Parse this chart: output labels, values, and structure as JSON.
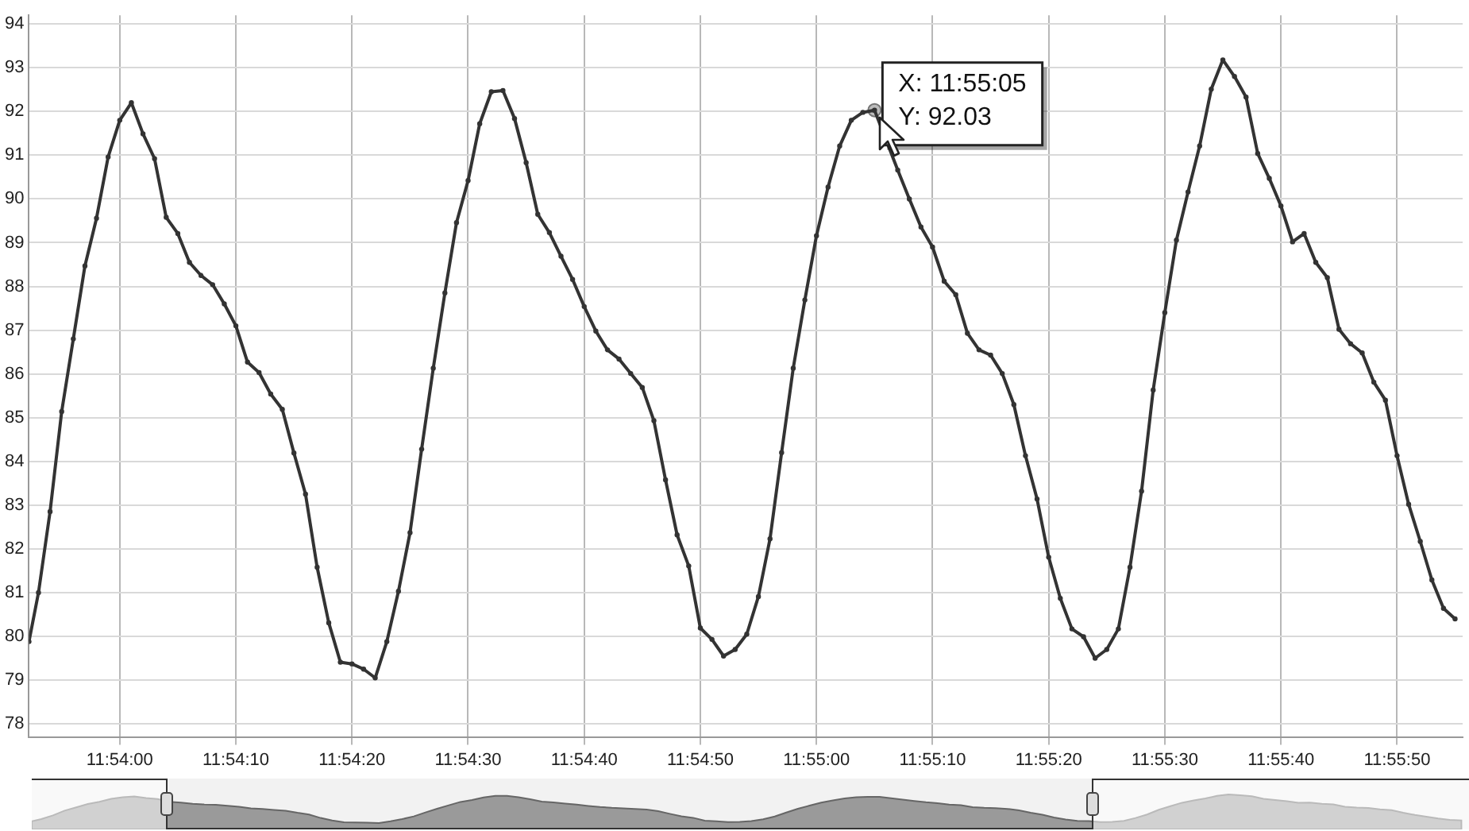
{
  "chart_data": {
    "type": "line",
    "x": [
      11.897828,
      11.898056,
      11.898333,
      11.898611,
      11.898889,
      11.899167,
      11.899444,
      11.899722,
      11.9,
      11.900278,
      11.900556,
      11.900833,
      11.901111,
      11.901389,
      11.901667,
      11.901944,
      11.902222,
      11.9025,
      11.902778,
      11.903056,
      11.903333,
      11.903611,
      11.903889,
      11.904167,
      11.904444,
      11.904722,
      11.905,
      11.905278,
      11.905556,
      11.905833,
      11.906111,
      11.906389,
      11.906667,
      11.906944,
      11.907222,
      11.9075,
      11.907778,
      11.908056,
      11.908333,
      11.908611,
      11.908889,
      11.909167,
      11.909444,
      11.909722,
      11.91,
      11.910278,
      11.910556,
      11.910833,
      11.911111,
      11.911389,
      11.911667,
      11.911944,
      11.912222,
      11.9125,
      11.912778,
      11.913056,
      11.913333,
      11.913611,
      11.913889,
      11.914167,
      11.914444,
      11.914722,
      11.915,
      11.915278,
      11.915556,
      11.915833,
      11.916111,
      11.916389,
      11.916667,
      11.916944,
      11.917222,
      11.9175,
      11.917778,
      11.918056,
      11.918333,
      11.918611,
      11.918889,
      11.919167,
      11.919444,
      11.919722,
      11.92,
      11.920278,
      11.920556,
      11.920833,
      11.921111,
      11.921389,
      11.921667,
      11.921944,
      11.922222,
      11.9225,
      11.922778,
      11.923056,
      11.923333,
      11.923611,
      11.923889,
      11.924167,
      11.924444,
      11.924722,
      11.925,
      11.925278,
      11.925556,
      11.925833,
      11.926111,
      11.926389,
      11.926667,
      11.926944,
      11.927222,
      11.9275,
      11.927778,
      11.928056,
      11.928333,
      11.928611,
      11.928889,
      11.929167,
      11.929444,
      11.929722,
      11.93,
      11.930278,
      11.930556,
      11.930833,
      11.931111,
      11.931389,
      11.931667,
      11.931944
    ],
    "series": [
      {
        "color": "#333333",
        "values": [
          79.88,
          81.0,
          82.85,
          85.14,
          86.8,
          88.47,
          89.56,
          90.96,
          91.8,
          92.2,
          91.49,
          90.92,
          89.58,
          89.21,
          88.55,
          88.25,
          88.04,
          87.6,
          87.1,
          86.27,
          86.03,
          85.54,
          85.19,
          84.19,
          83.25,
          81.58,
          80.31,
          79.41,
          79.37,
          79.25,
          79.05,
          79.88,
          81.03,
          82.37,
          84.28,
          86.13,
          87.85,
          89.46,
          90.42,
          91.72,
          92.45,
          92.48,
          91.84,
          90.83,
          89.65,
          89.23,
          88.69,
          88.16,
          87.54,
          86.98,
          86.55,
          86.34,
          86.01,
          85.69,
          84.93,
          83.58,
          82.32,
          81.61,
          80.19,
          79.93,
          79.55,
          79.7,
          80.05,
          80.91,
          82.23,
          84.2,
          86.13,
          87.69,
          89.16,
          90.27,
          91.21,
          91.8,
          91.98,
          92.03,
          null,
          90.66,
          90.0,
          89.36,
          88.9,
          88.12,
          87.81,
          86.93,
          86.55,
          86.43,
          86.01,
          85.3,
          84.13,
          83.14,
          81.81,
          80.87,
          80.17,
          79.99,
          79.5,
          79.7,
          80.17,
          81.58,
          83.32,
          85.63,
          87.4,
          89.06,
          90.16,
          91.21,
          92.51,
          93.18,
          92.8,
          92.33,
          91.04,
          90.47,
          89.84,
          89.02,
          89.21,
          88.55,
          88.2,
          87.02,
          86.69,
          86.48,
          85.81,
          85.4,
          84.13,
          83.02,
          82.17,
          81.29,
          80.64,
          80.4
        ]
      }
    ],
    "xlim": [
      11.897828,
      11.932125
    ],
    "xticks": [
      {
        "value": 11.9,
        "label": "11:54:00"
      },
      {
        "value": 11.902778,
        "label": "11:54:10"
      },
      {
        "value": 11.905556,
        "label": "11:54:20"
      },
      {
        "value": 11.908333,
        "label": "11:54:30"
      },
      {
        "value": 11.911111,
        "label": "11:54:40"
      },
      {
        "value": 11.913889,
        "label": "11:54:50"
      },
      {
        "value": 11.916667,
        "label": "11:55:00"
      },
      {
        "value": 11.919444,
        "label": "11:55:10"
      },
      {
        "value": 11.922222,
        "label": "11:55:20"
      },
      {
        "value": 11.925,
        "label": "11:55:30"
      },
      {
        "value": 11.927778,
        "label": "11:55:40"
      },
      {
        "value": 11.930556,
        "label": "11:55:50"
      }
    ],
    "ylim": [
      77.7,
      94.2
    ],
    "yticks": [
      78,
      79,
      80,
      81,
      82,
      83,
      84,
      85,
      86,
      87,
      88,
      89,
      90,
      91,
      92,
      93,
      94
    ],
    "annotations": [
      {
        "text": "X: 11:55:05\nY: 92.03",
        "x": 11.918056,
        "y": 92.03
      }
    ],
    "grid": true,
    "legend": false,
    "marker": "circle",
    "line_style": "solid"
  }
}
